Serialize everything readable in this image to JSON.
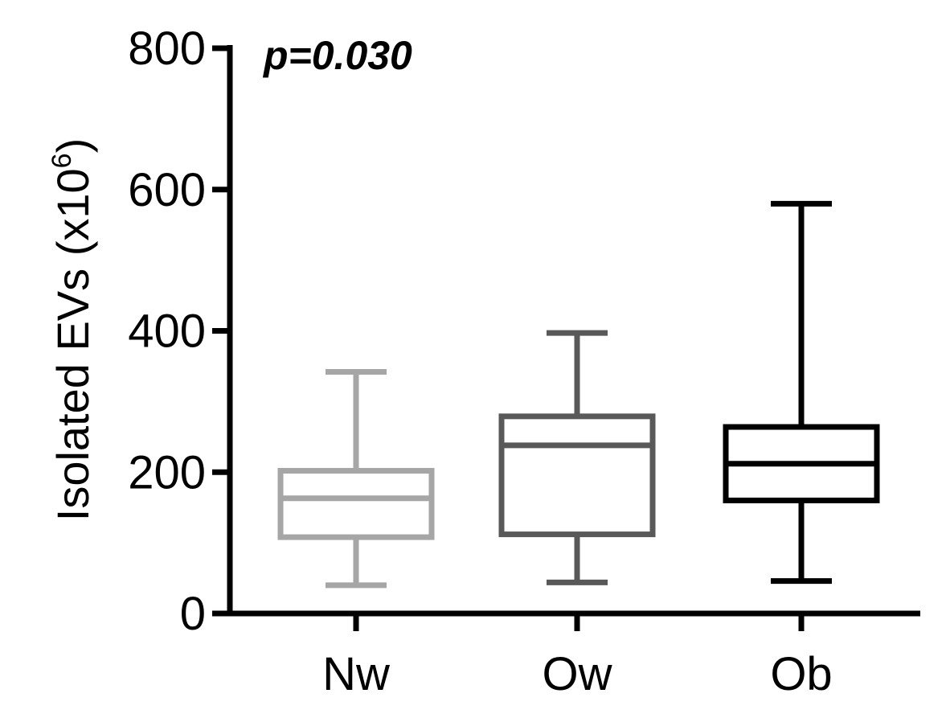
{
  "chart_data": {
    "type": "boxplot",
    "title": "",
    "xlabel": "",
    "ylabel": "Isolated EVs (x10",
    "ylabel_exponent": "6",
    "ylabel_close": ")",
    "ylim": [
      0,
      800
    ],
    "yticks": [
      0,
      200,
      400,
      600,
      800
    ],
    "grid": false,
    "annotation": "p=0.030",
    "categories": [
      "Nw",
      "Ow",
      "Ob"
    ],
    "series": [
      {
        "category": "Nw",
        "min": 40,
        "q1": 108,
        "median": 163,
        "q3": 202,
        "max": 342,
        "color": "#a6a6a6"
      },
      {
        "category": "Ow",
        "min": 44,
        "q1": 112,
        "median": 238,
        "q3": 279,
        "max": 397,
        "color": "#595959"
      },
      {
        "category": "Ob",
        "min": 46,
        "q1": 160,
        "median": 212,
        "q3": 264,
        "max": 580,
        "color": "#000000"
      }
    ]
  }
}
